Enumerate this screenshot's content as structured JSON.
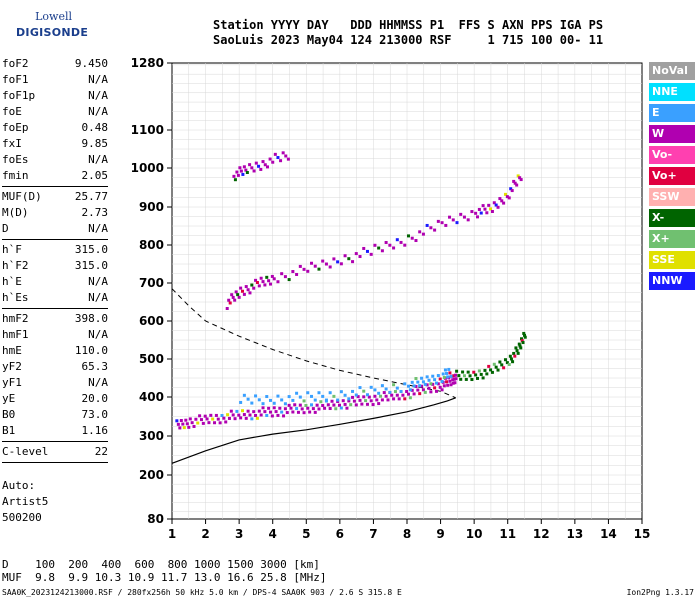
{
  "logo": {
    "top": "Lowell",
    "bottom": "DIGISONDE"
  },
  "header": {
    "line1": "Station YYYY DAY   DDD HHMMSS P1  FFS S AXN PPS IGA PS",
    "line2": "SaoLuis 2023 May04 124 213000 RSF     1 715 100 00- 11"
  },
  "params": [
    {
      "name": "foF2",
      "value": "9.450"
    },
    {
      "name": "foF1",
      "value": "N/A"
    },
    {
      "name": "foF1p",
      "value": "N/A"
    },
    {
      "name": "foE",
      "value": "N/A"
    },
    {
      "name": "foEp",
      "value": "0.48"
    },
    {
      "name": "fxI",
      "value": "9.85"
    },
    {
      "name": "foEs",
      "value": "N/A"
    },
    {
      "name": "fmin",
      "value": "2.05"
    },
    {
      "sep": true
    },
    {
      "name": "MUF(D)",
      "value": "25.77"
    },
    {
      "name": "M(D)",
      "value": "2.73"
    },
    {
      "name": "D",
      "value": "N/A"
    },
    {
      "sep": true
    },
    {
      "name": "h`F",
      "value": "315.0"
    },
    {
      "name": "h`F2",
      "value": "315.0"
    },
    {
      "name": "h`E",
      "value": "N/A"
    },
    {
      "name": "h`Es",
      "value": "N/A"
    },
    {
      "sep": true
    },
    {
      "name": "hmF2",
      "value": "398.0"
    },
    {
      "name": "hmF1",
      "value": "N/A"
    },
    {
      "name": "hmE",
      "value": "110.0"
    },
    {
      "name": "yF2",
      "value": "65.3"
    },
    {
      "name": "yF1",
      "value": "N/A"
    },
    {
      "name": "yE",
      "value": "20.0"
    },
    {
      "name": "B0",
      "value": "73.0"
    },
    {
      "name": "B1",
      "value": "1.16"
    },
    {
      "sep": true
    },
    {
      "name": "C-level",
      "value": "22"
    },
    {
      "sep": true
    }
  ],
  "auto": [
    "Auto:",
    "Artist5",
    "500200"
  ],
  "legend": [
    {
      "label": "NoVal",
      "color": "#a0a0a0"
    },
    {
      "label": "NNE",
      "color": "#00e0ff"
    },
    {
      "label": "E",
      "color": "#3aa0ff"
    },
    {
      "label": "W",
      "color": "#b000b0"
    },
    {
      "label": "Vo-",
      "color": "#ff40b0"
    },
    {
      "label": "Vo+",
      "color": "#e00040"
    },
    {
      "label": "SSW",
      "color": "#ffb0b0"
    },
    {
      "label": "X-",
      "color": "#006400"
    },
    {
      "label": "X+",
      "color": "#70c070"
    },
    {
      "label": "SSE",
      "color": "#e0e000"
    },
    {
      "label": "NNW",
      "color": "#1a1aff"
    }
  ],
  "dmuf": {
    "d_line": "D    100  200  400  600  800 1000 1500 3000 [km]",
    "muf_line": "MUF  9.8  9.9 10.3 10.9 11.7 13.0 16.6 25.8 [MHz]"
  },
  "footer": {
    "left": "SAA0K_2023124213000.RSF / 280fx256h 50 kHz 5.0 km / DPS-4 SAA0K 903 / 2.6 S 315.8 E",
    "right": "Ion2Png 1.3.17"
  },
  "chart_data": {
    "type": "scatter",
    "title": "",
    "xlabel": "",
    "ylabel": "",
    "xlim": [
      1,
      15
    ],
    "ylim": [
      80,
      1280
    ],
    "x_ticks": [
      1,
      2,
      3,
      4,
      5,
      6,
      7,
      8,
      9,
      10,
      11,
      12,
      13,
      14,
      15
    ],
    "y_ticks": [
      80,
      200,
      300,
      400,
      500,
      600,
      700,
      800,
      900,
      1000,
      1100,
      1280
    ],
    "grid": true,
    "legend_placement": "right",
    "traces": [
      {
        "name": "O-trace F2",
        "color": "#b000b0",
        "points": [
          [
            1.1,
            330
          ],
          [
            1.5,
            340
          ],
          [
            2,
            345
          ],
          [
            2.5,
            352
          ],
          [
            3,
            358
          ],
          [
            3.5,
            362
          ],
          [
            4,
            366
          ],
          [
            4.5,
            370
          ],
          [
            5,
            375
          ],
          [
            5.5,
            380
          ],
          [
            6,
            386
          ],
          [
            6.5,
            392
          ],
          [
            7,
            398
          ],
          [
            7.5,
            406
          ],
          [
            8,
            414
          ],
          [
            8.5,
            424
          ],
          [
            9,
            436
          ],
          [
            9.3,
            448
          ],
          [
            9.45,
            460
          ]
        ]
      },
      {
        "name": "O-trace lower edge",
        "color": "#3aa0ff",
        "points": [
          [
            3,
            395
          ],
          [
            4,
            398
          ],
          [
            5,
            402
          ],
          [
            6,
            410
          ],
          [
            7,
            420
          ],
          [
            8,
            435
          ],
          [
            8.5,
            445
          ],
          [
            9,
            458
          ],
          [
            9.3,
            470
          ]
        ]
      },
      {
        "name": "X-trace F2",
        "color": "#006400",
        "points": [
          [
            9.5,
            455
          ],
          [
            10,
            462
          ],
          [
            10.5,
            474
          ],
          [
            11,
            500
          ],
          [
            11.3,
            530
          ],
          [
            11.5,
            580
          ]
        ]
      },
      {
        "name": "multi-hop echo",
        "color": "#b000b0",
        "points": [
          [
            2.6,
            650
          ],
          [
            3,
            680
          ],
          [
            3.5,
            700
          ],
          [
            4,
            715
          ],
          [
            5,
            740
          ],
          [
            6,
            765
          ],
          [
            7,
            790
          ],
          [
            8,
            820
          ],
          [
            9,
            860
          ],
          [
            10,
            890
          ],
          [
            10.5,
            900
          ],
          [
            11,
            940
          ],
          [
            11.4,
            990
          ]
        ]
      },
      {
        "name": "upper echo",
        "color": "#b000b0",
        "points": [
          [
            2.8,
            985
          ],
          [
            3.2,
            1000
          ],
          [
            3.8,
            1020
          ],
          [
            4.5,
            1040
          ]
        ]
      }
    ],
    "profile_solid": {
      "name": "true height profile",
      "points": [
        [
          1,
          230
        ],
        [
          2,
          262
        ],
        [
          3,
          290
        ],
        [
          4,
          305
        ],
        [
          5,
          316
        ],
        [
          6,
          330
        ],
        [
          7,
          345
        ],
        [
          8,
          362
        ],
        [
          8.8,
          380
        ],
        [
          9.2,
          390
        ],
        [
          9.45,
          398
        ]
      ]
    },
    "profile_dashed": {
      "name": "MUF curve",
      "points": [
        [
          1,
          685
        ],
        [
          1.5,
          640
        ],
        [
          2,
          600
        ],
        [
          3,
          560
        ],
        [
          4,
          525
        ],
        [
          5,
          495
        ],
        [
          6,
          470
        ],
        [
          7,
          450
        ],
        [
          8,
          432
        ],
        [
          9,
          415
        ],
        [
          9.45,
          398
        ]
      ]
    }
  }
}
